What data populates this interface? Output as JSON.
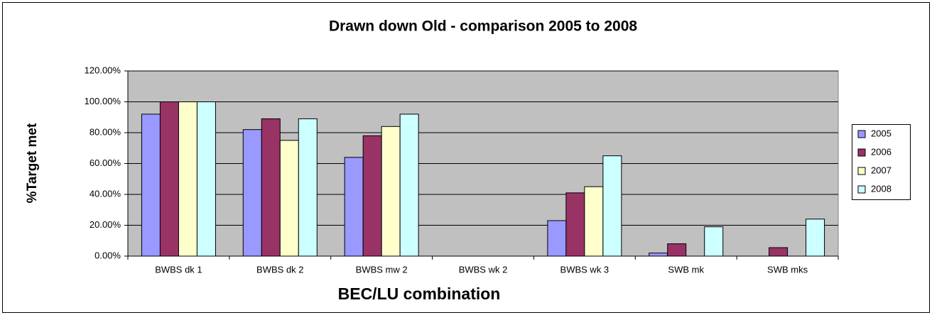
{
  "chart_data": {
    "type": "bar",
    "title": "Drawn down Old - comparison 2005 to 2008",
    "x_label": "BEC/LU combination",
    "y_label": "%Target met",
    "categories": [
      "BWBS dk 1",
      "BWBS dk 2",
      "BWBS mw 2",
      "BWBS wk 2",
      "BWBS wk 3",
      "SWB mk",
      "SWB mks"
    ],
    "series": [
      {
        "name": "2005",
        "color": "#9999ff",
        "values": [
          92,
          82,
          64,
          0,
          23,
          2,
          0
        ]
      },
      {
        "name": "2006",
        "color": "#993366",
        "values": [
          100,
          89,
          78,
          0,
          41,
          8,
          5.5
        ]
      },
      {
        "name": "2007",
        "color": "#ffffcc",
        "values": [
          100,
          75,
          84,
          0,
          45,
          0,
          0
        ]
      },
      {
        "name": "2008",
        "color": "#ccffff",
        "values": [
          100,
          89,
          92,
          0,
          65,
          19,
          24
        ]
      }
    ],
    "ylim": [
      0,
      120
    ],
    "yticks": [
      {
        "value": 0,
        "label": "0.00%"
      },
      {
        "value": 20,
        "label": "20.00%"
      },
      {
        "value": 40,
        "label": "40.00%"
      },
      {
        "value": 60,
        "label": "60.00%"
      },
      {
        "value": 80,
        "label": "80.00%"
      },
      {
        "value": 100,
        "label": "100.00%"
      },
      {
        "value": 120,
        "label": "120.00%"
      }
    ],
    "grid": true,
    "legend": "right",
    "plot_background": "#c0c0c0"
  }
}
